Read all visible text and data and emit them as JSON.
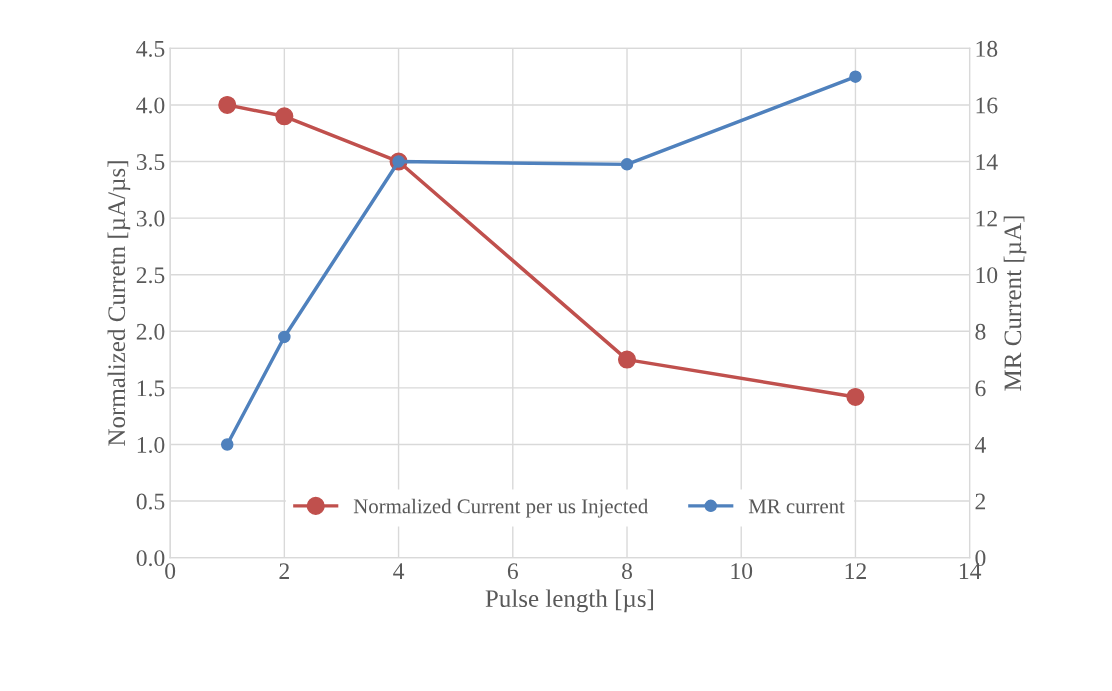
{
  "chart_data": {
    "type": "line",
    "xlabel": "Pulse length [µs]",
    "ylabel": "Normalized Curretn [µA/µs]",
    "y2label": "MR Current [µA]",
    "x": [
      1,
      2,
      4,
      8,
      12
    ],
    "series": [
      {
        "name": "Normalized Current per us Injected",
        "color": "#c0504d",
        "values": [
          4.0,
          3.9,
          3.5,
          1.75,
          1.42
        ]
      },
      {
        "name": "MR current",
        "color": "#4f81bd",
        "values": [
          4,
          7.8,
          14,
          13.9,
          17
        ],
        "axis": "y2"
      }
    ],
    "xlim": [
      0,
      14
    ],
    "xticks": [
      0,
      2,
      4,
      6,
      8,
      10,
      12,
      14
    ],
    "ylim": [
      0,
      4.5
    ],
    "yticks": [
      {
        "value": 0,
        "label": "0.0"
      },
      {
        "value": 0.5,
        "label": "0.5"
      },
      {
        "value": 1,
        "label": "1.0"
      },
      {
        "value": 1.5,
        "label": "1.5"
      },
      {
        "value": 2,
        "label": "2.0"
      },
      {
        "value": 2.5,
        "label": "2.5"
      },
      {
        "value": 3,
        "label": "3.0"
      },
      {
        "value": 3.5,
        "label": "3.5"
      },
      {
        "value": 4,
        "label": "4.0"
      },
      {
        "value": 4.5,
        "label": "4.5"
      }
    ],
    "y2lim": [
      0,
      18
    ],
    "y2ticks": [
      0,
      2,
      4,
      6,
      8,
      10,
      12,
      14,
      16,
      18
    ],
    "grid": true,
    "legend": "bottom",
    "marker": "circle",
    "line_style": "solid"
  }
}
